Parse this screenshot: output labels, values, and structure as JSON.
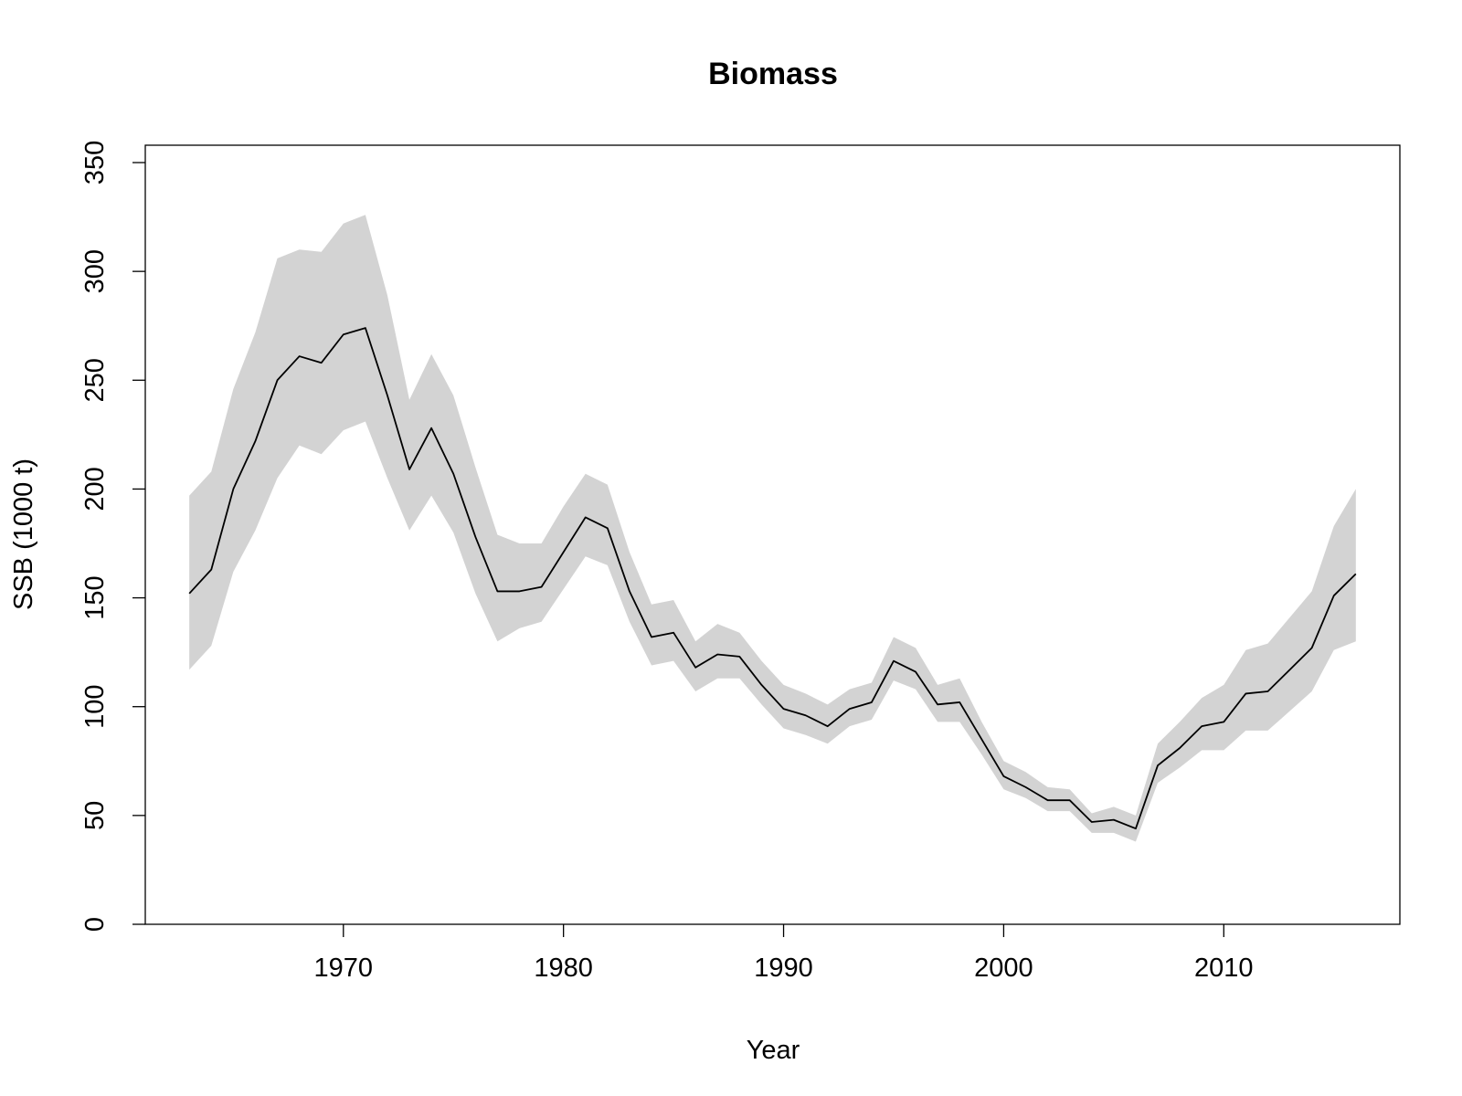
{
  "chart_data": {
    "type": "line",
    "title": "Biomass",
    "xlabel": "Year",
    "ylabel": "SSB (1000 t)",
    "xlim": [
      1961,
      2018
    ],
    "ylim": [
      0,
      350
    ],
    "x_ticks": [
      1970,
      1980,
      1990,
      2000,
      2010
    ],
    "y_ticks": [
      0,
      50,
      100,
      150,
      200,
      250,
      300,
      350
    ],
    "x_tick_labels": [
      "1970",
      "1980",
      "1990",
      "2000",
      "2010"
    ],
    "y_tick_labels": [
      "0",
      "50",
      "100",
      "150",
      "200",
      "250",
      "300",
      "350"
    ],
    "grid": false,
    "legend": "none",
    "colors": {
      "line": "#000000",
      "band": "#d3d3d3",
      "frame": "#000000"
    },
    "series": [
      {
        "x": [
          1963,
          1964,
          1965,
          1966,
          1967,
          1968,
          1969,
          1970,
          1971,
          1972,
          1973,
          1974,
          1975,
          1976,
          1977,
          1978,
          1979,
          1980,
          1981,
          1982,
          1983,
          1984,
          1985,
          1986,
          1987,
          1988,
          1989,
          1990,
          1991,
          1992,
          1993,
          1994,
          1995,
          1996,
          1997,
          1998,
          1999,
          2000,
          2001,
          2002,
          2003,
          2004,
          2005,
          2006,
          2007,
          2008,
          2009,
          2010,
          2011,
          2012,
          2013,
          2014,
          2015,
          2016
        ],
        "y": [
          152,
          163,
          200,
          222,
          250,
          261,
          258,
          271,
          274,
          243,
          209,
          228,
          207,
          178,
          153,
          153,
          155,
          171,
          187,
          182,
          153,
          132,
          134,
          118,
          124,
          123,
          110,
          99,
          96,
          91,
          99,
          102,
          121,
          116,
          101,
          102,
          85,
          68,
          63,
          57,
          57,
          47,
          48,
          44,
          73,
          81,
          91,
          93,
          106,
          107,
          117,
          127,
          151,
          161
        ],
        "lower": [
          117,
          128,
          162,
          181,
          205,
          220,
          216,
          227,
          231,
          205,
          181,
          197,
          180,
          152,
          130,
          136,
          139,
          154,
          169,
          165,
          139,
          119,
          121,
          107,
          113,
          113,
          101,
          90,
          87,
          83,
          91,
          94,
          112,
          108,
          93,
          93,
          78,
          62,
          58,
          52,
          52,
          42,
          42,
          38,
          65,
          72,
          80,
          80,
          89,
          89,
          98,
          107,
          126,
          130
        ],
        "upper": [
          197,
          208,
          246,
          272,
          306,
          310,
          309,
          322,
          326,
          289,
          241,
          262,
          243,
          210,
          179,
          175,
          175,
          192,
          207,
          202,
          171,
          147,
          149,
          130,
          138,
          134,
          121,
          110,
          106,
          101,
          108,
          111,
          132,
          127,
          110,
          113,
          93,
          75,
          70,
          63,
          62,
          51,
          54,
          50,
          83,
          93,
          104,
          110,
          126,
          129,
          141,
          153,
          183,
          200
        ]
      }
    ]
  }
}
